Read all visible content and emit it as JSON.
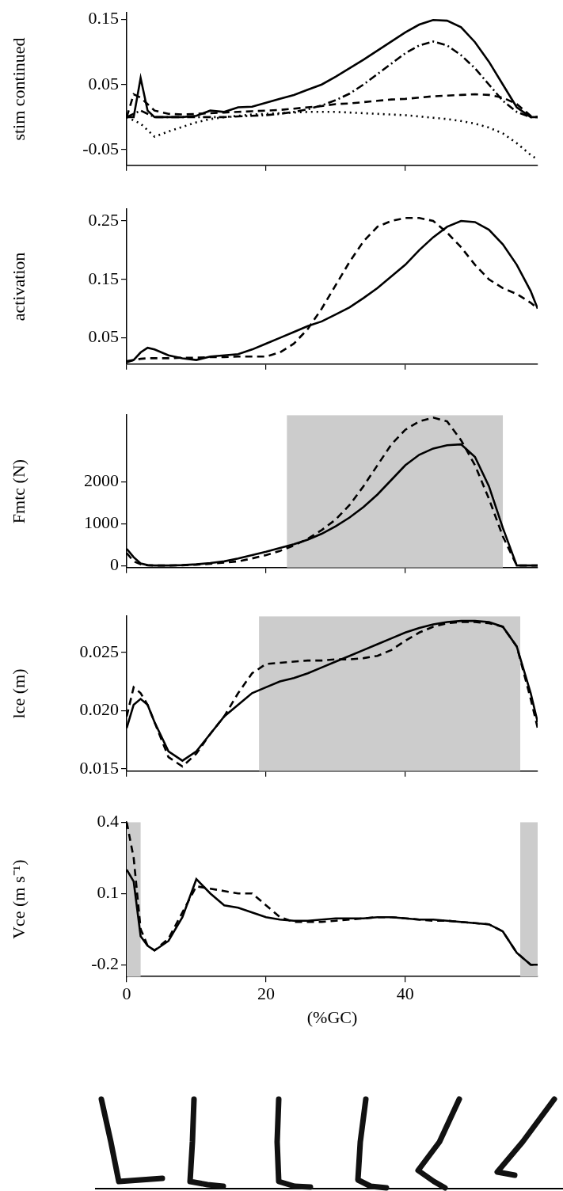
{
  "chart_data": [
    {
      "type": "line",
      "ylabel": "stim continued",
      "x": [
        0,
        1,
        2,
        3,
        4,
        6,
        8,
        10,
        12,
        14,
        16,
        18,
        20,
        22,
        24,
        26,
        28,
        30,
        32,
        34,
        36,
        38,
        40,
        42,
        44,
        46,
        48,
        50,
        52,
        54,
        56,
        58,
        59
      ],
      "series": [
        {
          "color": "#000000",
          "line_style": "solid",
          "values": [
            0,
            0,
            0.06,
            0.01,
            0,
            0,
            0,
            0.002,
            0.01,
            0.008,
            0.015,
            0.016,
            0.022,
            0.028,
            0.034,
            0.042,
            0.05,
            0.062,
            0.075,
            0.088,
            0.102,
            0.116,
            0.13,
            0.142,
            0.149,
            0.148,
            0.138,
            0.115,
            0.085,
            0.05,
            0.015,
            0,
            0
          ]
        },
        {
          "color": "#000000",
          "line_style": "dashdot",
          "values": [
            0,
            0.005,
            0.01,
            0.005,
            0,
            0,
            0,
            0,
            0,
            0,
            0.001,
            0.002,
            0.003,
            0.005,
            0.008,
            0.012,
            0.018,
            0.026,
            0.036,
            0.05,
            0.066,
            0.082,
            0.098,
            0.11,
            0.116,
            0.11,
            0.095,
            0.075,
            0.05,
            0.025,
            0.008,
            0,
            0
          ]
        },
        {
          "color": "#000000",
          "line_style": "dashed",
          "values": [
            0,
            0.035,
            0.03,
            0.02,
            0.01,
            0.005,
            0.004,
            0.005,
            0.006,
            0.007,
            0.008,
            0.009,
            0.01,
            0.011,
            0.013,
            0.015,
            0.017,
            0.02,
            0.021,
            0.023,
            0.025,
            0.027,
            0.028,
            0.03,
            0.032,
            0.033,
            0.034,
            0.035,
            0.034,
            0.03,
            0.02,
            0.002,
            0
          ]
        },
        {
          "color": "#000000",
          "line_style": "dotted",
          "values": [
            0,
            -0.005,
            -0.01,
            -0.02,
            -0.03,
            -0.022,
            -0.015,
            -0.008,
            -0.003,
            0,
            0.002,
            0.004,
            0.005,
            0.006,
            0.007,
            0.008,
            0.008,
            0.008,
            0.007,
            0.006,
            0.005,
            0.004,
            0.003,
            0.001,
            -0.001,
            -0.003,
            -0.006,
            -0.01,
            -0.016,
            -0.025,
            -0.04,
            -0.058,
            -0.065
          ]
        }
      ],
      "xlim": [
        0,
        59
      ],
      "xticks": [
        0,
        20,
        40
      ],
      "ylim": [
        -0.074,
        0.16
      ],
      "yticks": [
        -0.05,
        0.05,
        0.15
      ],
      "grid": false,
      "tick_labels": "y"
    },
    {
      "type": "line",
      "ylabel": "activation",
      "x": [
        0,
        1,
        2,
        3,
        4,
        6,
        8,
        10,
        12,
        14,
        16,
        18,
        20,
        22,
        24,
        26,
        28,
        30,
        32,
        34,
        36,
        38,
        40,
        42,
        44,
        46,
        48,
        50,
        52,
        54,
        56,
        58,
        59
      ],
      "series": [
        {
          "color": "#000000",
          "line_style": "solid",
          "values": [
            0.008,
            0.012,
            0.025,
            0.033,
            0.03,
            0.02,
            0.015,
            0.012,
            0.018,
            0.02,
            0.022,
            0.03,
            0.04,
            0.05,
            0.06,
            0.07,
            0.078,
            0.09,
            0.102,
            0.118,
            0.135,
            0.155,
            0.175,
            0.2,
            0.222,
            0.24,
            0.25,
            0.248,
            0.235,
            0.21,
            0.175,
            0.13,
            0.1
          ]
        },
        {
          "color": "#000000",
          "line_style": "dashed",
          "values": [
            0.01,
            0.012,
            0.014,
            0.015,
            0.015,
            0.015,
            0.016,
            0.016,
            0.017,
            0.017,
            0.018,
            0.018,
            0.018,
            0.025,
            0.04,
            0.065,
            0.1,
            0.14,
            0.18,
            0.215,
            0.24,
            0.25,
            0.255,
            0.255,
            0.25,
            0.23,
            0.205,
            0.175,
            0.15,
            0.135,
            0.125,
            0.11,
            0.1
          ]
        }
      ],
      "xlim": [
        0,
        59
      ],
      "xticks": [
        0,
        20,
        40
      ],
      "ylim": [
        0.005,
        0.27
      ],
      "yticks": [
        0.05,
        0.15,
        0.25
      ],
      "grid": false,
      "tick_labels": "y"
    },
    {
      "type": "line",
      "ylabel": "Fmtc (N)",
      "x": [
        0,
        1,
        2,
        3,
        4,
        6,
        8,
        10,
        12,
        14,
        16,
        18,
        20,
        22,
        24,
        26,
        28,
        30,
        32,
        34,
        36,
        38,
        40,
        42,
        44,
        46,
        48,
        50,
        52,
        54,
        56,
        58,
        59
      ],
      "series": [
        {
          "color": "#000000",
          "line_style": "solid",
          "values": [
            400,
            200,
            50,
            10,
            0,
            0,
            10,
            30,
            60,
            100,
            170,
            250,
            330,
            420,
            510,
            620,
            760,
            940,
            1150,
            1400,
            1700,
            2050,
            2400,
            2650,
            2800,
            2880,
            2900,
            2600,
            1900,
            900,
            0,
            0,
            0
          ]
        },
        {
          "color": "#000000",
          "line_style": "dashed",
          "values": [
            300,
            100,
            30,
            5,
            0,
            0,
            5,
            20,
            40,
            70,
            100,
            170,
            250,
            350,
            480,
            640,
            850,
            1100,
            1450,
            1900,
            2400,
            2900,
            3250,
            3450,
            3540,
            3450,
            3000,
            2400,
            1600,
            700,
            0,
            0,
            0
          ]
        }
      ],
      "shaded_regions": [
        [
          23,
          54
        ]
      ],
      "xlim": [
        0,
        59
      ],
      "xticks": [
        0,
        20,
        40
      ],
      "ylim": [
        -50,
        3600
      ],
      "yticks": [
        0,
        1000,
        2000
      ],
      "grid": false,
      "tick_labels": "y"
    },
    {
      "type": "line",
      "ylabel": "lce (m)",
      "x": [
        0,
        1,
        2,
        3,
        4,
        6,
        8,
        10,
        12,
        14,
        16,
        18,
        20,
        22,
        24,
        26,
        28,
        30,
        32,
        34,
        36,
        38,
        40,
        42,
        44,
        46,
        48,
        50,
        52,
        54,
        56,
        58,
        59
      ],
      "series": [
        {
          "color": "#000000",
          "line_style": "solid",
          "values": [
            0.0185,
            0.0205,
            0.021,
            0.0205,
            0.019,
            0.0165,
            0.0157,
            0.0165,
            0.018,
            0.0195,
            0.0205,
            0.0215,
            0.022,
            0.0225,
            0.0228,
            0.0232,
            0.0237,
            0.0242,
            0.0247,
            0.0252,
            0.0257,
            0.0262,
            0.0267,
            0.0271,
            0.0274,
            0.0276,
            0.0277,
            0.0277,
            0.0276,
            0.0272,
            0.0255,
            0.0215,
            0.019
          ]
        },
        {
          "color": "#000000",
          "line_style": "dashed",
          "values": [
            0.0195,
            0.022,
            0.0215,
            0.0205,
            0.019,
            0.016,
            0.0152,
            0.0163,
            0.018,
            0.0195,
            0.0215,
            0.0232,
            0.024,
            0.0241,
            0.0242,
            0.0243,
            0.0243,
            0.0244,
            0.0244,
            0.0245,
            0.0247,
            0.0252,
            0.026,
            0.0267,
            0.0272,
            0.0275,
            0.0276,
            0.0276,
            0.0275,
            0.0272,
            0.0255,
            0.021,
            0.0185
          ]
        }
      ],
      "shaded_regions": [
        [
          19,
          56.5
        ]
      ],
      "xlim": [
        0,
        59
      ],
      "xticks": [
        0,
        20,
        40
      ],
      "ylim": [
        0.0148,
        0.0281
      ],
      "yticks": [
        0.015,
        {
          "value": 0.02,
          "label": "0.020"
        },
        0.025
      ],
      "grid": false,
      "tick_labels": "y"
    },
    {
      "type": "line",
      "ylabel": "Vce (m s⁻¹)",
      "xlabel": "(%GC)",
      "x": [
        0,
        1,
        2,
        3,
        4,
        6,
        8,
        10,
        12,
        14,
        16,
        18,
        20,
        22,
        24,
        26,
        28,
        30,
        32,
        34,
        36,
        38,
        40,
        42,
        44,
        46,
        48,
        50,
        52,
        54,
        56,
        58,
        59
      ],
      "series": [
        {
          "color": "#000000",
          "line_style": "solid",
          "values": [
            0.2,
            0.15,
            -0.08,
            -0.12,
            -0.14,
            -0.1,
            0.0,
            0.16,
            0.1,
            0.05,
            0.04,
            0.02,
            0.0,
            -0.01,
            -0.015,
            -0.015,
            -0.01,
            -0.005,
            -0.005,
            -0.005,
            0.0,
            0.0,
            -0.005,
            -0.01,
            -0.01,
            -0.015,
            -0.02,
            -0.025,
            -0.03,
            -0.06,
            -0.15,
            -0.2,
            -0.2
          ]
        },
        {
          "color": "#000000",
          "line_style": "dashed",
          "values": [
            0.4,
            0.25,
            -0.05,
            -0.12,
            -0.14,
            -0.09,
            0.02,
            0.13,
            0.12,
            0.11,
            0.1,
            0.1,
            0.05,
            0.0,
            -0.02,
            -0.02,
            -0.02,
            -0.015,
            -0.01,
            -0.005,
            0.0,
            0.0,
            -0.005,
            -0.01,
            -0.015,
            -0.015,
            -0.02,
            -0.025,
            -0.03,
            -0.06,
            -0.15,
            -0.2,
            -0.2
          ]
        }
      ],
      "shaded_regions": [
        [
          0,
          2
        ],
        [
          56.5,
          59
        ]
      ],
      "xlim": [
        0,
        59
      ],
      "xticks": [
        0,
        20,
        40
      ],
      "ylim": [
        -0.25,
        0.4
      ],
      "yticks": [
        -0.2,
        0.1,
        0.4
      ],
      "grid": false
    }
  ]
}
